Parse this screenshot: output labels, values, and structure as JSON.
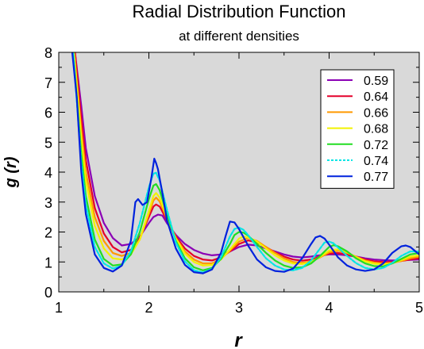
{
  "chart_data": {
    "type": "line",
    "title": "Radial Distribution Function",
    "subtitle": "at different densities",
    "xlabel": "r",
    "ylabel": "g (r)",
    "xlim": [
      1,
      5
    ],
    "ylim": [
      0,
      8
    ],
    "x_ticks": [
      1,
      2,
      3,
      4,
      5
    ],
    "y_ticks": [
      0,
      1,
      2,
      3,
      4,
      5,
      6,
      7,
      8
    ],
    "grid": false,
    "legend_position": "top-right",
    "background": "#d9d9d9",
    "series": [
      {
        "name": "0.59",
        "color": "#8b00b5",
        "dash": false,
        "points": [
          [
            1.18,
            8.0
          ],
          [
            1.25,
            6.2
          ],
          [
            1.3,
            4.8
          ],
          [
            1.4,
            3.2
          ],
          [
            1.5,
            2.3
          ],
          [
            1.6,
            1.8
          ],
          [
            1.7,
            1.55
          ],
          [
            1.8,
            1.6
          ],
          [
            1.9,
            1.85
          ],
          [
            2.0,
            2.3
          ],
          [
            2.05,
            2.5
          ],
          [
            2.1,
            2.58
          ],
          [
            2.15,
            2.55
          ],
          [
            2.2,
            2.3
          ],
          [
            2.3,
            1.9
          ],
          [
            2.4,
            1.6
          ],
          [
            2.5,
            1.4
          ],
          [
            2.6,
            1.28
          ],
          [
            2.7,
            1.22
          ],
          [
            2.8,
            1.25
          ],
          [
            2.9,
            1.35
          ],
          [
            3.0,
            1.5
          ],
          [
            3.1,
            1.58
          ],
          [
            3.2,
            1.55
          ],
          [
            3.3,
            1.45
          ],
          [
            3.4,
            1.35
          ],
          [
            3.5,
            1.25
          ],
          [
            3.6,
            1.18
          ],
          [
            3.7,
            1.15
          ],
          [
            3.8,
            1.18
          ],
          [
            3.9,
            1.22
          ],
          [
            4.0,
            1.25
          ],
          [
            4.1,
            1.25
          ],
          [
            4.2,
            1.22
          ],
          [
            4.3,
            1.18
          ],
          [
            4.4,
            1.12
          ],
          [
            4.5,
            1.08
          ],
          [
            4.6,
            1.06
          ],
          [
            4.7,
            1.05
          ],
          [
            4.8,
            1.05
          ],
          [
            4.9,
            1.07
          ],
          [
            5.0,
            1.08
          ]
        ]
      },
      {
        "name": "0.64",
        "color": "#e4002b",
        "dash": false,
        "points": [
          [
            1.18,
            8.0
          ],
          [
            1.25,
            5.8
          ],
          [
            1.3,
            4.4
          ],
          [
            1.4,
            2.8
          ],
          [
            1.5,
            1.95
          ],
          [
            1.6,
            1.5
          ],
          [
            1.7,
            1.32
          ],
          [
            1.8,
            1.4
          ],
          [
            1.9,
            1.8
          ],
          [
            2.0,
            2.5
          ],
          [
            2.05,
            2.85
          ],
          [
            2.08,
            2.92
          ],
          [
            2.12,
            2.85
          ],
          [
            2.2,
            2.4
          ],
          [
            2.3,
            1.85
          ],
          [
            2.4,
            1.45
          ],
          [
            2.5,
            1.2
          ],
          [
            2.6,
            1.08
          ],
          [
            2.7,
            1.05
          ],
          [
            2.8,
            1.15
          ],
          [
            2.9,
            1.35
          ],
          [
            3.0,
            1.6
          ],
          [
            3.1,
            1.72
          ],
          [
            3.2,
            1.65
          ],
          [
            3.3,
            1.5
          ],
          [
            3.4,
            1.32
          ],
          [
            3.5,
            1.18
          ],
          [
            3.6,
            1.08
          ],
          [
            3.7,
            1.04
          ],
          [
            3.8,
            1.08
          ],
          [
            3.9,
            1.18
          ],
          [
            4.0,
            1.28
          ],
          [
            4.1,
            1.3
          ],
          [
            4.2,
            1.25
          ],
          [
            4.3,
            1.17
          ],
          [
            4.4,
            1.08
          ],
          [
            4.5,
            1.02
          ],
          [
            4.6,
            1.0
          ],
          [
            4.7,
            1.0
          ],
          [
            4.8,
            1.03
          ],
          [
            4.9,
            1.08
          ],
          [
            5.0,
            1.12
          ]
        ]
      },
      {
        "name": "0.66",
        "color": "#ff9900",
        "dash": false,
        "points": [
          [
            1.17,
            8.0
          ],
          [
            1.25,
            5.4
          ],
          [
            1.3,
            4.0
          ],
          [
            1.4,
            2.5
          ],
          [
            1.5,
            1.7
          ],
          [
            1.6,
            1.3
          ],
          [
            1.7,
            1.2
          ],
          [
            1.8,
            1.3
          ],
          [
            1.9,
            1.75
          ],
          [
            2.0,
            2.6
          ],
          [
            2.05,
            3.05
          ],
          [
            2.08,
            3.15
          ],
          [
            2.12,
            3.02
          ],
          [
            2.2,
            2.45
          ],
          [
            2.3,
            1.8
          ],
          [
            2.4,
            1.35
          ],
          [
            2.5,
            1.08
          ],
          [
            2.6,
            0.95
          ],
          [
            2.7,
            0.95
          ],
          [
            2.8,
            1.1
          ],
          [
            2.9,
            1.38
          ],
          [
            3.0,
            1.68
          ],
          [
            3.1,
            1.8
          ],
          [
            3.2,
            1.7
          ],
          [
            3.3,
            1.5
          ],
          [
            3.4,
            1.3
          ],
          [
            3.5,
            1.12
          ],
          [
            3.6,
            1.0
          ],
          [
            3.7,
            0.97
          ],
          [
            3.8,
            1.02
          ],
          [
            3.9,
            1.15
          ],
          [
            4.0,
            1.32
          ],
          [
            4.1,
            1.38
          ],
          [
            4.2,
            1.3
          ],
          [
            4.3,
            1.18
          ],
          [
            4.4,
            1.05
          ],
          [
            4.5,
            0.98
          ],
          [
            4.6,
            0.95
          ],
          [
            4.7,
            0.97
          ],
          [
            4.8,
            1.03
          ],
          [
            4.9,
            1.12
          ],
          [
            5.0,
            1.18
          ]
        ]
      },
      {
        "name": "0.68",
        "color": "#f2f200",
        "dash": false,
        "points": [
          [
            1.17,
            8.0
          ],
          [
            1.25,
            5.1
          ],
          [
            1.3,
            3.7
          ],
          [
            1.4,
            2.2
          ],
          [
            1.5,
            1.45
          ],
          [
            1.6,
            1.12
          ],
          [
            1.7,
            1.08
          ],
          [
            1.8,
            1.25
          ],
          [
            1.9,
            1.75
          ],
          [
            2.0,
            2.7
          ],
          [
            2.05,
            3.2
          ],
          [
            2.08,
            3.3
          ],
          [
            2.12,
            3.15
          ],
          [
            2.2,
            2.5
          ],
          [
            2.3,
            1.78
          ],
          [
            2.4,
            1.28
          ],
          [
            2.5,
            1.0
          ],
          [
            2.6,
            0.88
          ],
          [
            2.7,
            0.9
          ],
          [
            2.8,
            1.08
          ],
          [
            2.9,
            1.42
          ],
          [
            3.0,
            1.78
          ],
          [
            3.05,
            1.85
          ],
          [
            3.1,
            1.82
          ],
          [
            3.2,
            1.68
          ],
          [
            3.3,
            1.45
          ],
          [
            3.4,
            1.22
          ],
          [
            3.5,
            1.05
          ],
          [
            3.6,
            0.95
          ],
          [
            3.7,
            0.93
          ],
          [
            3.8,
            1.0
          ],
          [
            3.9,
            1.17
          ],
          [
            4.0,
            1.38
          ],
          [
            4.1,
            1.42
          ],
          [
            4.2,
            1.32
          ],
          [
            4.3,
            1.16
          ],
          [
            4.4,
            1.02
          ],
          [
            4.5,
            0.94
          ],
          [
            4.6,
            0.92
          ],
          [
            4.7,
            0.96
          ],
          [
            4.8,
            1.06
          ],
          [
            4.9,
            1.18
          ],
          [
            5.0,
            1.22
          ]
        ]
      },
      {
        "name": "0.72",
        "color": "#22dd22",
        "dash": false,
        "points": [
          [
            1.16,
            8.0
          ],
          [
            1.25,
            4.6
          ],
          [
            1.3,
            3.2
          ],
          [
            1.4,
            1.75
          ],
          [
            1.5,
            1.1
          ],
          [
            1.6,
            0.88
          ],
          [
            1.7,
            0.92
          ],
          [
            1.8,
            1.25
          ],
          [
            1.9,
            2.0
          ],
          [
            2.0,
            3.1
          ],
          [
            2.05,
            3.55
          ],
          [
            2.08,
            3.6
          ],
          [
            2.12,
            3.4
          ],
          [
            2.2,
            2.6
          ],
          [
            2.3,
            1.7
          ],
          [
            2.4,
            1.12
          ],
          [
            2.5,
            0.82
          ],
          [
            2.6,
            0.72
          ],
          [
            2.7,
            0.8
          ],
          [
            2.8,
            1.1
          ],
          [
            2.9,
            1.6
          ],
          [
            2.95,
            1.9
          ],
          [
            3.0,
            2.0
          ],
          [
            3.05,
            1.98
          ],
          [
            3.1,
            1.88
          ],
          [
            3.2,
            1.6
          ],
          [
            3.3,
            1.3
          ],
          [
            3.4,
            1.05
          ],
          [
            3.5,
            0.88
          ],
          [
            3.6,
            0.8
          ],
          [
            3.7,
            0.82
          ],
          [
            3.8,
            0.95
          ],
          [
            3.9,
            1.2
          ],
          [
            4.0,
            1.5
          ],
          [
            4.05,
            1.56
          ],
          [
            4.1,
            1.52
          ],
          [
            4.2,
            1.35
          ],
          [
            4.3,
            1.12
          ],
          [
            4.4,
            0.95
          ],
          [
            4.5,
            0.86
          ],
          [
            4.6,
            0.85
          ],
          [
            4.7,
            0.95
          ],
          [
            4.8,
            1.1
          ],
          [
            4.9,
            1.25
          ],
          [
            5.0,
            1.3
          ]
        ]
      },
      {
        "name": "0.74",
        "color": "#00e5e5",
        "dash": true,
        "points": [
          [
            1.16,
            8.0
          ],
          [
            1.25,
            4.3
          ],
          [
            1.3,
            2.9
          ],
          [
            1.4,
            1.5
          ],
          [
            1.5,
            0.95
          ],
          [
            1.6,
            0.78
          ],
          [
            1.7,
            0.88
          ],
          [
            1.8,
            1.35
          ],
          [
            1.9,
            2.3
          ],
          [
            2.0,
            3.5
          ],
          [
            2.05,
            3.95
          ],
          [
            2.08,
            3.98
          ],
          [
            2.12,
            3.72
          ],
          [
            2.2,
            2.75
          ],
          [
            2.3,
            1.65
          ],
          [
            2.4,
            1.02
          ],
          [
            2.5,
            0.72
          ],
          [
            2.6,
            0.65
          ],
          [
            2.7,
            0.77
          ],
          [
            2.8,
            1.15
          ],
          [
            2.9,
            1.85
          ],
          [
            2.95,
            2.1
          ],
          [
            3.0,
            2.15
          ],
          [
            3.05,
            2.07
          ],
          [
            3.1,
            1.9
          ],
          [
            3.2,
            1.5
          ],
          [
            3.3,
            1.12
          ],
          [
            3.4,
            0.88
          ],
          [
            3.5,
            0.75
          ],
          [
            3.6,
            0.72
          ],
          [
            3.7,
            0.8
          ],
          [
            3.8,
            1.05
          ],
          [
            3.9,
            1.45
          ],
          [
            3.95,
            1.65
          ],
          [
            4.0,
            1.68
          ],
          [
            4.05,
            1.62
          ],
          [
            4.1,
            1.48
          ],
          [
            4.2,
            1.2
          ],
          [
            4.3,
            0.96
          ],
          [
            4.4,
            0.8
          ],
          [
            4.5,
            0.75
          ],
          [
            4.6,
            0.8
          ],
          [
            4.7,
            0.97
          ],
          [
            4.8,
            1.2
          ],
          [
            4.9,
            1.35
          ],
          [
            5.0,
            1.35
          ]
        ]
      },
      {
        "name": "0.77",
        "color": "#0022dd",
        "dash": false,
        "points": [
          [
            1.15,
            8.0
          ],
          [
            1.2,
            6.5
          ],
          [
            1.25,
            4.0
          ],
          [
            1.3,
            2.6
          ],
          [
            1.4,
            1.25
          ],
          [
            1.5,
            0.8
          ],
          [
            1.6,
            0.68
          ],
          [
            1.7,
            0.88
          ],
          [
            1.8,
            1.7
          ],
          [
            1.85,
            3.0
          ],
          [
            1.88,
            3.1
          ],
          [
            1.93,
            2.9
          ],
          [
            1.98,
            3.0
          ],
          [
            2.03,
            3.85
          ],
          [
            2.06,
            4.45
          ],
          [
            2.08,
            4.3
          ],
          [
            2.1,
            4.1
          ],
          [
            2.15,
            3.3
          ],
          [
            2.2,
            2.4
          ],
          [
            2.3,
            1.45
          ],
          [
            2.4,
            0.9
          ],
          [
            2.5,
            0.66
          ],
          [
            2.6,
            0.62
          ],
          [
            2.7,
            0.75
          ],
          [
            2.8,
            1.3
          ],
          [
            2.85,
            1.85
          ],
          [
            2.9,
            2.35
          ],
          [
            2.95,
            2.32
          ],
          [
            3.0,
            2.1
          ],
          [
            3.1,
            1.55
          ],
          [
            3.2,
            1.08
          ],
          [
            3.3,
            0.82
          ],
          [
            3.4,
            0.7
          ],
          [
            3.5,
            0.67
          ],
          [
            3.6,
            0.78
          ],
          [
            3.7,
            1.12
          ],
          [
            3.8,
            1.6
          ],
          [
            3.85,
            1.82
          ],
          [
            3.9,
            1.87
          ],
          [
            3.95,
            1.78
          ],
          [
            4.0,
            1.58
          ],
          [
            4.1,
            1.15
          ],
          [
            4.2,
            0.88
          ],
          [
            4.3,
            0.75
          ],
          [
            4.4,
            0.7
          ],
          [
            4.5,
            0.75
          ],
          [
            4.6,
            0.95
          ],
          [
            4.7,
            1.3
          ],
          [
            4.8,
            1.52
          ],
          [
            4.85,
            1.55
          ],
          [
            4.9,
            1.5
          ],
          [
            5.0,
            1.25
          ]
        ]
      }
    ]
  }
}
